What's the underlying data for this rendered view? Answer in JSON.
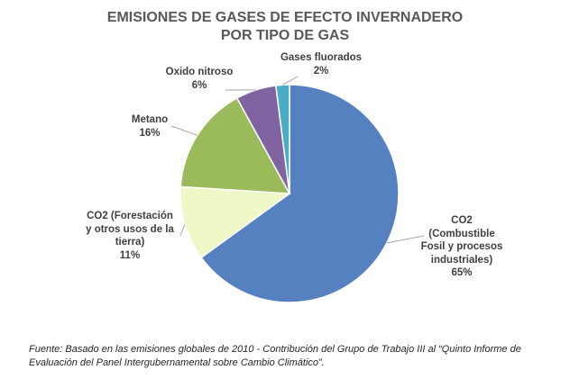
{
  "chart_data": {
    "type": "pie",
    "title_lines": [
      "EMISIONES DE GASES DE EFECTO INVERNADERO",
      "POR TIPO DE GAS"
    ],
    "slices": [
      {
        "label_lines": [
          "CO2",
          "(Combustible",
          "Fosil y procesos",
          "industriales)"
        ],
        "value": 65,
        "value_label": "65%",
        "color": "#5681C0"
      },
      {
        "label_lines": [
          "CO2 (Forestación",
          "y otros usos de la",
          "tierra)"
        ],
        "value": 11,
        "value_label": "11%",
        "color": "#EFF7C7"
      },
      {
        "label_lines": [
          "Metano"
        ],
        "value": 16,
        "value_label": "16%",
        "color": "#9BBA5A"
      },
      {
        "label_lines": [
          "Oxido nitroso"
        ],
        "value": 6,
        "value_label": "6%",
        "color": "#8064A2"
      },
      {
        "label_lines": [
          "Gases fluorados"
        ],
        "value": 2,
        "value_label": "2%",
        "color": "#4BACC6"
      }
    ]
  },
  "source_note": "Fuente: Basado en las emisiones globales de 2010 - Contribución del Grupo de Trabajo III al “Quinto Informe de Evaluación del Panel Intergubernamental sobre Cambio Climático”."
}
